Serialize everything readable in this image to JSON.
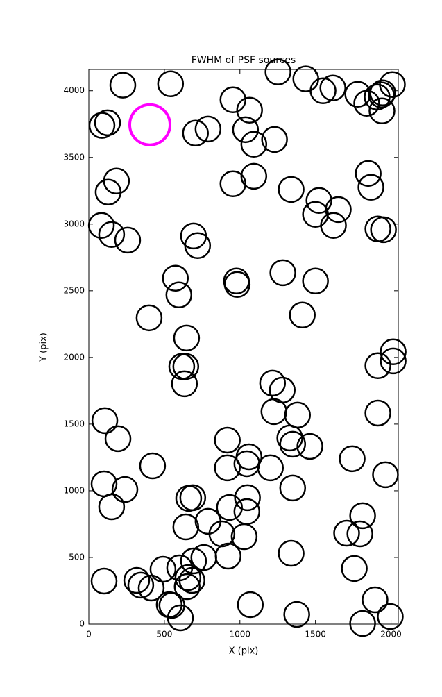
{
  "chart_data": {
    "type": "scatter",
    "title": "FWHM of PSF sources",
    "x_label": "X (pix)",
    "y_label": "Y (pix)",
    "xlim": [
      0,
      2048
    ],
    "ylim": [
      0,
      4160
    ],
    "xticks": [
      0,
      500,
      1000,
      1500,
      2000
    ],
    "yticks": [
      0,
      500,
      1000,
      1500,
      2000,
      2500,
      3000,
      3500,
      4000
    ],
    "series": [
      {
        "name": "sources",
        "color": "#000000",
        "x": [
          225,
          541,
          87,
          124,
          706,
          789,
          954,
          1064,
          1037,
          1092,
          1229,
          1252,
          1436,
          1550,
          1615,
          1780,
          1839,
          1908,
          1936,
          1945,
          1940,
          2009,
          183,
          128,
          1092,
          954,
          1339,
          1523,
          1651,
          1500,
          1619,
          1849,
          1867,
          1913,
          1950,
          83,
          151,
          257,
          693,
          720,
          573,
          596,
          977,
          982,
          1284,
          1500,
          1413,
          399,
          647,
          615,
          642,
          633,
          1913,
          2014,
          2014,
          1216,
          1280,
          1225,
          1381,
          1330,
          1349,
          1463,
          106,
          193,
          917,
          1060,
          1046,
          917,
          1202,
          1743,
          1913,
          1963,
          422,
          101,
          239,
          151,
          1349,
          931,
          661,
          688,
          1050,
          1046,
          1028,
          642,
          789,
          881,
          922,
          761,
          693,
          1339,
          1706,
          1812,
          1794,
          1757,
          101,
          317,
          344,
          413,
          491,
          601,
          656,
          683,
          651,
          532,
          550,
          606,
          1069,
          1376,
          1812,
          1894,
          1995
        ],
        "values": [
          4042,
          4052,
          3740,
          3760,
          3682,
          3713,
          3932,
          3854,
          3708,
          3599,
          3635,
          4141,
          4089,
          4000,
          4021,
          3974,
          3906,
          3953,
          3969,
          3984,
          3849,
          4047,
          3323,
          3240,
          3359,
          3302,
          3260,
          3177,
          3109,
          3073,
          2990,
          3380,
          3276,
          2964,
          2958,
          2990,
          2922,
          2880,
          2911,
          2839,
          2594,
          2469,
          2573,
          2547,
          2635,
          2573,
          2318,
          2297,
          2146,
          1932,
          1932,
          1802,
          1938,
          2042,
          1974,
          1807,
          1755,
          1594,
          1568,
          1396,
          1349,
          1333,
          1526,
          1391,
          1380,
          1255,
          1203,
          1172,
          1172,
          1240,
          1583,
          1120,
          1187,
          1052,
          1010,
          880,
          1021,
          875,
          943,
          948,
          948,
          844,
          656,
          729,
          771,
          677,
          510,
          500,
          474,
          531,
          682,
          813,
          677,
          417,
          323,
          328,
          292,
          271,
          411,
          422,
          349,
          328,
          281,
          146,
          141,
          47,
          146,
          73,
          5,
          182,
          57
        ]
      },
      {
        "name": "highlight",
        "color": "#ff00ff",
        "x": [
          404
        ],
        "values": [
          3745
        ]
      }
    ]
  }
}
